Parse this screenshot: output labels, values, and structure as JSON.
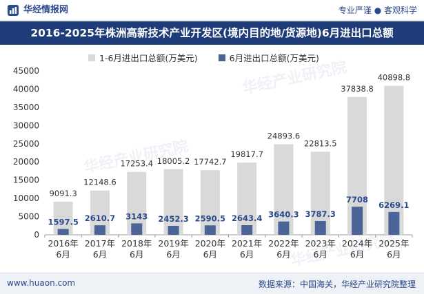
{
  "header": {
    "brand": "华经情报网",
    "slogan": "专业严谨 ● 客观科学"
  },
  "title": "2016-2025年株洲高新技术产业开发区(境内目的地/货源地)6月进出口总额",
  "footer": {
    "site": "www.huaon.com",
    "source": "数据来源：中国海关，华经产业研究院整理"
  },
  "watermark": "华经产业研究院",
  "chart_data": {
    "type": "bar",
    "categories": [
      "2016年\n6月",
      "2017年\n6月",
      "2018年\n6月",
      "2019年\n6月",
      "2020年\n6月",
      "2021年\n6月",
      "2022年\n6月",
      "2023年\n6月",
      "2024年\n6月",
      "2025年\n6月"
    ],
    "series": [
      {
        "name": "1-6月进出口总额(万美元)",
        "values": [
          9091.3,
          12148.6,
          17253.4,
          18005.2,
          17742.7,
          19817.7,
          24893.6,
          22813.5,
          37838.8,
          40898.8
        ],
        "labels": [
          "9091.3",
          "12148.6",
          "17253.4",
          "18005.2",
          "17742.7",
          "19817.7",
          "24893.6",
          "22813.5",
          "37838.8",
          "40898.8"
        ],
        "color": "#d9d9d9"
      },
      {
        "name": "6月进出口总额(万美元)",
        "values": [
          1597.5,
          2610.7,
          3143,
          2452.3,
          2590.5,
          2643.4,
          3640.3,
          3787.3,
          7708,
          6269.1
        ],
        "labels": [
          "1597.5",
          "2610.7",
          "3143",
          "2452.3",
          "2590.5",
          "2643.4",
          "3640.3",
          "3787.3",
          "7708",
          "6269.1"
        ],
        "color": "#4a6497"
      }
    ],
    "ylim": [
      0,
      45000
    ],
    "yticks": [
      0,
      5000,
      10000,
      15000,
      20000,
      25000,
      30000,
      35000,
      40000,
      45000
    ],
    "grid": false,
    "legend": "top-left",
    "xlabel": "",
    "ylabel": ""
  }
}
